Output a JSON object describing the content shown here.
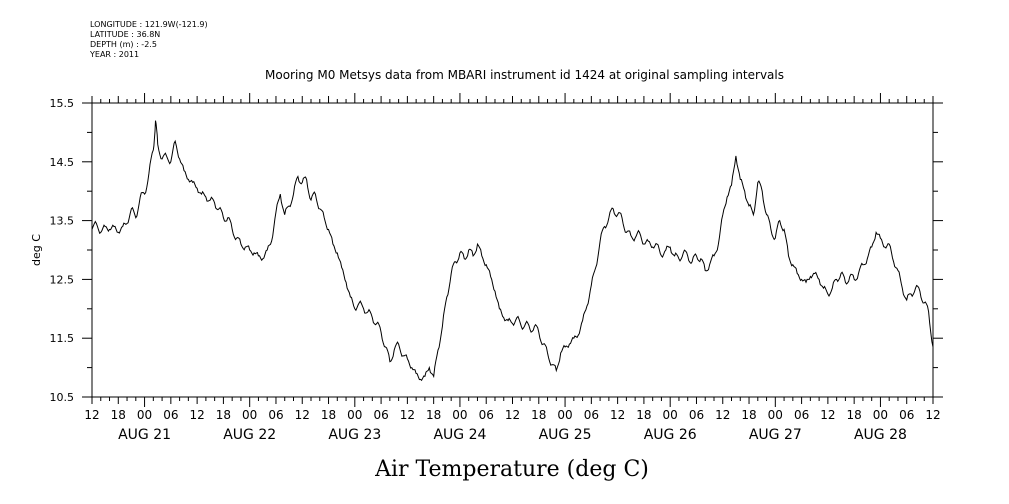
{
  "header": {
    "longitude": "LONGITUDE : 121.9W(-121.9)",
    "latitude": "LATITUDE : 36.8N",
    "depth": "DEPTH (m) : -2.5",
    "year": "YEAR : 2011"
  },
  "chart_data": {
    "type": "line",
    "title": "Mooring M0 Metsys data from MBARI instrument id 1424 at original sampling intervals",
    "xlabel": "Air Temperature (deg C)",
    "ylabel": "deg C",
    "ylim": [
      10.5,
      15.5
    ],
    "y_ticks": [
      "10.5",
      "11.5",
      "12.5",
      "13.5",
      "14.5",
      "15.5"
    ],
    "x_unit": "hours since 2011-08-21 00:00",
    "xlim": [
      -12,
      180
    ],
    "x_tick_labels": [
      "12",
      "18",
      "00",
      "06",
      "12",
      "18",
      "00",
      "06",
      "12",
      "18",
      "00",
      "06",
      "12",
      "18",
      "00",
      "06",
      "12",
      "18",
      "00",
      "06",
      "12",
      "18",
      "00",
      "06",
      "12",
      "18",
      "00",
      "06",
      "12",
      "18",
      "00",
      "06",
      "12"
    ],
    "date_labels": [
      "AUG 21",
      "AUG 22",
      "AUG 23",
      "AUG 24",
      "AUG 25",
      "AUG 26",
      "AUG 27",
      "AUG 28"
    ],
    "grid": false,
    "series": [
      {
        "points": [
          [
            -12,
            13.35
          ],
          [
            -11,
            13.45
          ],
          [
            -10,
            13.3
          ],
          [
            -9,
            13.4
          ],
          [
            -8,
            13.35
          ],
          [
            -7,
            13.4
          ],
          [
            -6,
            13.3
          ],
          [
            -5,
            13.4
          ],
          [
            -4,
            13.45
          ],
          [
            -3,
            13.7
          ],
          [
            -2,
            13.55
          ],
          [
            -1,
            13.9
          ],
          [
            0,
            13.95
          ],
          [
            1,
            14.3
          ],
          [
            2,
            14.7
          ],
          [
            2.5,
            15.2
          ],
          [
            3,
            14.8
          ],
          [
            4,
            14.55
          ],
          [
            5,
            14.6
          ],
          [
            6,
            14.5
          ],
          [
            7,
            14.85
          ],
          [
            8,
            14.55
          ],
          [
            9,
            14.35
          ],
          [
            10,
            14.2
          ],
          [
            11,
            14.15
          ],
          [
            12,
            14.05
          ],
          [
            13,
            13.95
          ],
          [
            14,
            13.9
          ],
          [
            15,
            13.85
          ],
          [
            16,
            13.8
          ],
          [
            17,
            13.7
          ],
          [
            18,
            13.55
          ],
          [
            19,
            13.55
          ],
          [
            20,
            13.35
          ],
          [
            21,
            13.2
          ],
          [
            22,
            13.1
          ],
          [
            23,
            13.05
          ],
          [
            24,
            13.0
          ],
          [
            25,
            12.95
          ],
          [
            26,
            12.9
          ],
          [
            27,
            12.85
          ],
          [
            28,
            13.0
          ],
          [
            29,
            13.15
          ],
          [
            30,
            13.65
          ],
          [
            31,
            13.95
          ],
          [
            32,
            13.6
          ],
          [
            33,
            13.75
          ],
          [
            34,
            13.95
          ],
          [
            35,
            14.25
          ],
          [
            36,
            14.15
          ],
          [
            37,
            14.2
          ],
          [
            38,
            13.85
          ],
          [
            39,
            13.95
          ],
          [
            40,
            13.7
          ],
          [
            41,
            13.55
          ],
          [
            42,
            13.35
          ],
          [
            43,
            13.1
          ],
          [
            44,
            12.95
          ],
          [
            45,
            12.7
          ],
          [
            46,
            12.45
          ],
          [
            47,
            12.2
          ],
          [
            48,
            12.0
          ],
          [
            49,
            12.1
          ],
          [
            50,
            12.0
          ],
          [
            51,
            11.95
          ],
          [
            52,
            11.85
          ],
          [
            53,
            11.75
          ],
          [
            54,
            11.6
          ],
          [
            55,
            11.35
          ],
          [
            56,
            11.1
          ],
          [
            57,
            11.3
          ],
          [
            58,
            11.4
          ],
          [
            59,
            11.2
          ],
          [
            60,
            11.15
          ],
          [
            61,
            11.0
          ],
          [
            62,
            10.9
          ],
          [
            63,
            10.8
          ],
          [
            64,
            10.85
          ],
          [
            65,
            11.0
          ],
          [
            66,
            10.85
          ],
          [
            67,
            11.3
          ],
          [
            68,
            11.7
          ],
          [
            69,
            12.2
          ],
          [
            70,
            12.6
          ],
          [
            71,
            12.8
          ],
          [
            72,
            12.95
          ],
          [
            73,
            12.85
          ],
          [
            74,
            13.0
          ],
          [
            75,
            12.9
          ],
          [
            76,
            13.1
          ],
          [
            77,
            12.9
          ],
          [
            78,
            12.75
          ],
          [
            79,
            12.55
          ],
          [
            80,
            12.3
          ],
          [
            81,
            12.0
          ],
          [
            82,
            11.85
          ],
          [
            83,
            11.8
          ],
          [
            84,
            11.75
          ],
          [
            85,
            11.85
          ],
          [
            86,
            11.7
          ],
          [
            87,
            11.75
          ],
          [
            88,
            11.65
          ],
          [
            89,
            11.7
          ],
          [
            90,
            11.6
          ],
          [
            91,
            11.4
          ],
          [
            92,
            11.25
          ],
          [
            93,
            11.05
          ],
          [
            94,
            10.95
          ],
          [
            95,
            11.25
          ],
          [
            96,
            11.35
          ],
          [
            97,
            11.4
          ],
          [
            98,
            11.5
          ],
          [
            99,
            11.55
          ],
          [
            100,
            11.8
          ],
          [
            101,
            12.05
          ],
          [
            102,
            12.4
          ],
          [
            103,
            12.7
          ],
          [
            104,
            13.15
          ],
          [
            105,
            13.4
          ],
          [
            106,
            13.55
          ],
          [
            107,
            13.7
          ],
          [
            108,
            13.6
          ],
          [
            109,
            13.55
          ],
          [
            110,
            13.3
          ],
          [
            111,
            13.25
          ],
          [
            112,
            13.2
          ],
          [
            113,
            13.3
          ],
          [
            114,
            13.1
          ],
          [
            115,
            13.15
          ],
          [
            116,
            13.05
          ],
          [
            117,
            13.1
          ],
          [
            118,
            12.9
          ],
          [
            119,
            13.0
          ],
          [
            120,
            13.05
          ],
          [
            121,
            12.9
          ],
          [
            122,
            12.85
          ],
          [
            123,
            12.95
          ],
          [
            124,
            12.9
          ],
          [
            125,
            12.8
          ],
          [
            126,
            12.9
          ],
          [
            127,
            12.85
          ],
          [
            128,
            12.65
          ],
          [
            129,
            12.75
          ],
          [
            130,
            12.9
          ],
          [
            131,
            13.1
          ],
          [
            132,
            13.6
          ],
          [
            133,
            13.9
          ],
          [
            134,
            14.1
          ],
          [
            135,
            14.6
          ],
          [
            136,
            14.2
          ],
          [
            137,
            14.0
          ],
          [
            138,
            13.75
          ],
          [
            139,
            13.6
          ],
          [
            140,
            14.15
          ],
          [
            141,
            14.0
          ],
          [
            142,
            13.6
          ],
          [
            143,
            13.35
          ],
          [
            144,
            13.2
          ],
          [
            145,
            13.5
          ],
          [
            146,
            13.35
          ],
          [
            147,
            12.9
          ],
          [
            148,
            12.75
          ],
          [
            149,
            12.6
          ],
          [
            150,
            12.5
          ],
          [
            151,
            12.45
          ],
          [
            152,
            12.55
          ],
          [
            153,
            12.6
          ],
          [
            154,
            12.5
          ],
          [
            155,
            12.35
          ],
          [
            156,
            12.25
          ],
          [
            157,
            12.35
          ],
          [
            158,
            12.5
          ],
          [
            159,
            12.6
          ],
          [
            160,
            12.45
          ],
          [
            161,
            12.55
          ],
          [
            162,
            12.5
          ],
          [
            163,
            12.6
          ],
          [
            164,
            12.75
          ],
          [
            165,
            12.85
          ],
          [
            166,
            13.05
          ],
          [
            167,
            13.3
          ],
          [
            168,
            13.2
          ],
          [
            169,
            13.05
          ],
          [
            170,
            13.1
          ],
          [
            171,
            12.8
          ],
          [
            172,
            12.65
          ],
          [
            173,
            12.35
          ],
          [
            174,
            12.15
          ],
          [
            175,
            12.25
          ],
          [
            176,
            12.35
          ],
          [
            177,
            12.3
          ],
          [
            178,
            12.1
          ],
          [
            179,
            11.95
          ],
          [
            180,
            11.35
          ]
        ]
      }
    ]
  }
}
